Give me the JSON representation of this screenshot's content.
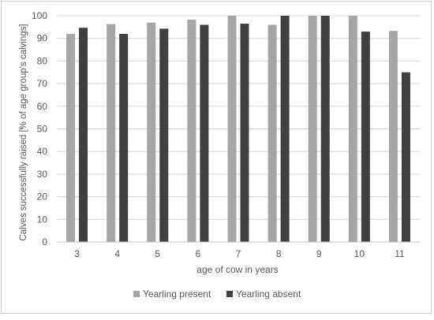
{
  "chart_data": {
    "type": "bar",
    "title": "",
    "xlabel": "age of cow in years",
    "ylabel": "Calves  successfully raised [% of age group's calvings]",
    "categories": [
      "3",
      "4",
      "5",
      "6",
      "7",
      "8",
      "9",
      "10",
      "11"
    ],
    "series": [
      {
        "name": "Yearling present",
        "color": "#a6a6a6",
        "values": [
          92,
          96.3,
          97,
          98.3,
          100,
          96,
          100,
          100,
          93.3
        ]
      },
      {
        "name": "Yearling absent",
        "color": "#404040",
        "values": [
          94.7,
          92,
          94.3,
          96,
          96.5,
          100,
          100,
          93,
          75
        ]
      }
    ],
    "ylim": [
      0,
      100
    ],
    "yticks": [
      0,
      10,
      20,
      30,
      40,
      50,
      60,
      70,
      80,
      90,
      100
    ],
    "ytick_labels": [
      "0",
      "10",
      "20",
      "30",
      "40",
      "50",
      "60",
      "70",
      "80",
      "90",
      "100"
    ],
    "grid": true,
    "legend_position": "bottom"
  }
}
